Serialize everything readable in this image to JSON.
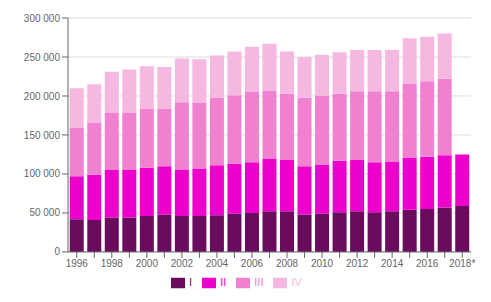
{
  "chart_data": {
    "type": "bar",
    "stacked": true,
    "categories": [
      "1996",
      null,
      "1998",
      null,
      "2000",
      null,
      "2002",
      null,
      "2004",
      null,
      "2006",
      null,
      "2008",
      null,
      "2010",
      null,
      "2012",
      null,
      "2014",
      null,
      "2016",
      null,
      "2018*"
    ],
    "series": [
      {
        "name": "I",
        "color": "#6B0B5E",
        "values": [
          42000,
          41000,
          44000,
          44000,
          46000,
          48000,
          46000,
          46000,
          47000,
          49000,
          50000,
          52000,
          52000,
          48000,
          49000,
          51000,
          52000,
          51000,
          52000,
          54000,
          55000,
          57000,
          59000
        ]
      },
      {
        "name": "II",
        "color": "#EE00CC",
        "values": [
          55000,
          58000,
          61000,
          61000,
          62000,
          62000,
          59000,
          61000,
          64000,
          64000,
          65000,
          67000,
          66000,
          62000,
          63000,
          66000,
          66000,
          64000,
          64000,
          67000,
          67000,
          67000,
          66000
        ]
      },
      {
        "name": "III",
        "color": "#F080D0",
        "values": [
          62000,
          67000,
          73000,
          73000,
          76000,
          74000,
          87000,
          84000,
          87000,
          88000,
          90000,
          88000,
          85000,
          88000,
          88000,
          86000,
          88000,
          91000,
          90000,
          95000,
          97000,
          98000,
          0
        ]
      },
      {
        "name": "IV",
        "color": "#F5B8E0",
        "values": [
          51000,
          49000,
          53000,
          56000,
          54000,
          53000,
          56000,
          56000,
          54000,
          56000,
          58000,
          60000,
          54000,
          52000,
          53000,
          53000,
          53000,
          53000,
          53000,
          58000,
          57000,
          58000,
          0
        ]
      }
    ],
    "ylim": [
      0,
      300000
    ],
    "yticks": [
      0,
      {
        "value": 50000,
        "label": "50 000"
      },
      {
        "value": 100000,
        "label": "100 000"
      },
      {
        "value": 150000,
        "label": "150 000"
      },
      {
        "value": 200000,
        "label": "200 000"
      },
      {
        "value": 250000,
        "label": "250 000"
      },
      {
        "value": 300000,
        "label": "300 000"
      }
    ],
    "grid": true,
    "legend": "bottom"
  }
}
